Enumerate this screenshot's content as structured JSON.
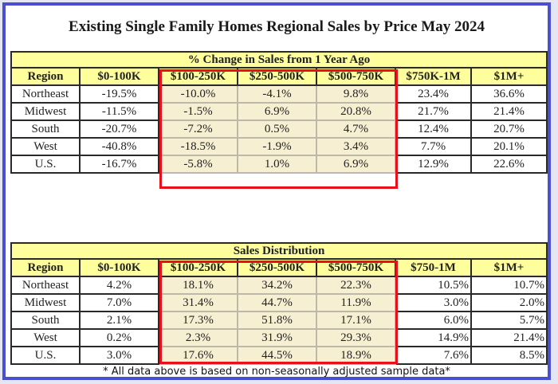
{
  "title": "Existing Single Family Homes Regional Sales by Price May 2024",
  "footnote": "* All data above is based on non-seasonally adjusted sample data*",
  "colors": {
    "frame": "#4a4fd0",
    "header_fill": "#fefe9c",
    "highlight_fill": "#f7efd2",
    "highlight_border": "#e8111b"
  },
  "tables": [
    {
      "banner": "% Change in Sales from 1 Year Ago",
      "headers": [
        "Region",
        "$0-100K",
        "$100-250K",
        "$250-500K",
        "$500-750K",
        "$750K-1M",
        "$1M+"
      ],
      "rows": [
        [
          "Northeast",
          "-19.5%",
          "-10.0%",
          "-4.1%",
          "9.8%",
          "23.4%",
          "36.6%"
        ],
        [
          "Midwest",
          "-11.5%",
          "-1.5%",
          "6.9%",
          "20.8%",
          "21.7%",
          "21.4%"
        ],
        [
          "South",
          "-20.7%",
          "-7.2%",
          "0.5%",
          "4.7%",
          "12.4%",
          "20.7%"
        ],
        [
          "West",
          "-40.8%",
          "-18.5%",
          "-1.9%",
          "3.4%",
          "7.7%",
          "20.1%"
        ],
        [
          "U.S.",
          "-16.7%",
          "-5.8%",
          "1.0%",
          "6.9%",
          "12.9%",
          "22.6%"
        ]
      ]
    },
    {
      "banner": "Sales Distribution",
      "headers": [
        "Region",
        "$0-100K",
        "$100-250K",
        "$250-500K",
        "$500-750K",
        "$750-1M",
        "$1M+"
      ],
      "rows": [
        [
          "Northeast",
          "4.2%",
          "18.1%",
          "34.2%",
          "22.3%",
          "10.5%",
          "10.7%"
        ],
        [
          "Midwest",
          "7.0%",
          "31.4%",
          "44.7%",
          "11.9%",
          "3.0%",
          "2.0%"
        ],
        [
          "South",
          "2.1%",
          "17.3%",
          "51.8%",
          "17.1%",
          "6.0%",
          "5.7%"
        ],
        [
          "West",
          "0.2%",
          "2.3%",
          "31.9%",
          "29.3%",
          "14.9%",
          "21.4%"
        ],
        [
          "U.S.",
          "3.0%",
          "17.6%",
          "44.5%",
          "18.9%",
          "7.6%",
          "8.5%"
        ]
      ]
    }
  ],
  "chart_data": [
    {
      "type": "table",
      "title": "% Change in Sales from 1 Year Ago",
      "categories": [
        "$0-100K",
        "$100-250K",
        "$250-500K",
        "$500-750K",
        "$750K-1M",
        "$1M+"
      ],
      "highlighted_categories": [
        "$100-250K",
        "$250-500K",
        "$500-750K"
      ],
      "unit": "%",
      "series": [
        {
          "name": "Northeast",
          "values": [
            -19.5,
            -10.0,
            -4.1,
            9.8,
            23.4,
            36.6
          ]
        },
        {
          "name": "Midwest",
          "values": [
            -11.5,
            -1.5,
            6.9,
            20.8,
            21.7,
            21.4
          ]
        },
        {
          "name": "South",
          "values": [
            -20.7,
            -7.2,
            0.5,
            4.7,
            12.4,
            20.7
          ]
        },
        {
          "name": "West",
          "values": [
            -40.8,
            -18.5,
            -1.9,
            3.4,
            7.7,
            20.1
          ]
        },
        {
          "name": "U.S.",
          "values": [
            -16.7,
            -5.8,
            1.0,
            6.9,
            12.9,
            22.6
          ]
        }
      ]
    },
    {
      "type": "table",
      "title": "Sales Distribution",
      "categories": [
        "$0-100K",
        "$100-250K",
        "$250-500K",
        "$500-750K",
        "$750-1M",
        "$1M+"
      ],
      "highlighted_categories": [
        "$100-250K",
        "$250-500K",
        "$500-750K"
      ],
      "unit": "%",
      "series": [
        {
          "name": "Northeast",
          "values": [
            4.2,
            18.1,
            34.2,
            22.3,
            10.5,
            10.7
          ]
        },
        {
          "name": "Midwest",
          "values": [
            7.0,
            31.4,
            44.7,
            11.9,
            3.0,
            2.0
          ]
        },
        {
          "name": "South",
          "values": [
            2.1,
            17.3,
            51.8,
            17.1,
            6.0,
            5.7
          ]
        },
        {
          "name": "West",
          "values": [
            0.2,
            2.3,
            31.9,
            29.3,
            14.9,
            21.4
          ]
        },
        {
          "name": "U.S.",
          "values": [
            3.0,
            17.6,
            44.5,
            18.9,
            7.6,
            8.5
          ]
        }
      ]
    }
  ]
}
